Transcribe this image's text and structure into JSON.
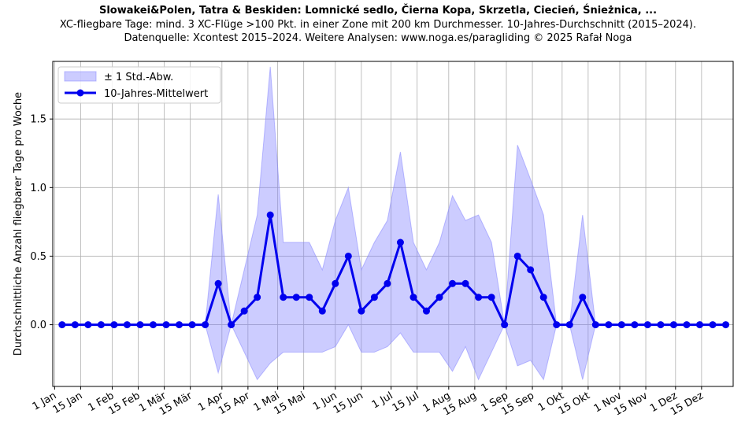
{
  "chart_data": {
    "type": "line",
    "title": "Slowakei&Polen, Tatra & Beskiden: Lomnické sedlo, Čierna Kopa, Skrzetla, Ciecień, Śnieżnica, ...",
    "subtitle_lines": [
      "XC-fliegbare Tage: mind. 3 XC-Flüge >100 Pkt. in einer Zone mit 200 km Durchmesser. 10-Jahres-Durchschnitt (2015–2024).",
      "Datenquelle: Xcontest 2015–2024. Weitere Analysen: www.noga.es/paragliding © 2025 Rafał Noga"
    ],
    "ylabel": "Durchschnittliche Anzahl fliegbarer Tage pro Woche",
    "xlabel": "",
    "x_unit": "day of year",
    "xlim": [
      0,
      366
    ],
    "ylim": [
      -0.45,
      1.92
    ],
    "y_ticks": [
      0.0,
      0.5,
      1.0,
      1.5
    ],
    "y_tick_labels": [
      "0.0",
      "0.5",
      "1.0",
      "1.5"
    ],
    "x_ticks": [
      1,
      15,
      32,
      46,
      60,
      74,
      91,
      105,
      121,
      135,
      152,
      166,
      182,
      196,
      213,
      227,
      244,
      258,
      274,
      288,
      305,
      319,
      335,
      349
    ],
    "x_tick_labels": [
      "1 Jan",
      "15 Jan",
      "1 Feb",
      "15 Feb",
      "1 Mär",
      "15 Mär",
      "1 Apr",
      "15 Apr",
      "1 Mai",
      "15 Mai",
      "1 Jun",
      "15 Jun",
      "1 Jul",
      "15 Jul",
      "1 Aug",
      "15 Aug",
      "1 Sep",
      "15 Sep",
      "1 Okt",
      "15 Okt",
      "1 Nov",
      "15 Nov",
      "1 Dez",
      "15 Dez"
    ],
    "grid": true,
    "legend_position": "top-left",
    "x": [
      5,
      12,
      19,
      26,
      33,
      40,
      47,
      54,
      61,
      68,
      75,
      82,
      89,
      96,
      103,
      110,
      117,
      124,
      131,
      138,
      145,
      152,
      159,
      166,
      173,
      180,
      187,
      194,
      201,
      208,
      215,
      222,
      229,
      236,
      243,
      250,
      257,
      264,
      271,
      278,
      285,
      292,
      299,
      306,
      313,
      320,
      327,
      334,
      341,
      348,
      355,
      362
    ],
    "series": [
      {
        "name": "10-Jahres-Mittelwert",
        "color": "#0000ee",
        "values": [
          0,
          0,
          0,
          0,
          0,
          0,
          0,
          0,
          0,
          0,
          0,
          0,
          0.3,
          0,
          0.1,
          0.2,
          0.8,
          0.2,
          0.2,
          0.2,
          0.1,
          0.3,
          0.5,
          0.1,
          0.2,
          0.3,
          0.6,
          0.2,
          0.1,
          0.2,
          0.3,
          0.3,
          0.2,
          0.2,
          0,
          0.5,
          0.4,
          0.2,
          0,
          0,
          0.2,
          0,
          0,
          0,
          0,
          0,
          0,
          0,
          0,
          0,
          0,
          0
        ]
      },
      {
        "name": "± 1 Std.-Abw.",
        "color": "#8080ff",
        "type": "band",
        "lower": [
          0,
          0,
          0,
          0,
          0,
          0,
          0,
          0,
          0,
          0,
          0,
          0,
          -0.35,
          0,
          -0.2,
          -0.4,
          -0.28,
          -0.2,
          -0.2,
          -0.2,
          -0.2,
          -0.16,
          0,
          -0.2,
          -0.2,
          -0.16,
          -0.06,
          -0.2,
          -0.2,
          -0.2,
          -0.34,
          -0.16,
          -0.4,
          -0.2,
          0,
          -0.3,
          -0.26,
          -0.4,
          0,
          0,
          -0.4,
          0,
          0,
          0,
          0,
          0,
          0,
          0,
          0,
          0,
          0,
          0
        ],
        "upper": [
          0,
          0,
          0,
          0,
          0,
          0,
          0,
          0,
          0,
          0,
          0,
          0,
          0.95,
          0,
          0.4,
          0.8,
          1.88,
          0.6,
          0.6,
          0.6,
          0.4,
          0.76,
          1.0,
          0.4,
          0.6,
          0.76,
          1.26,
          0.6,
          0.4,
          0.6,
          0.94,
          0.76,
          0.8,
          0.6,
          0,
          1.31,
          1.06,
          0.8,
          0,
          0,
          0.8,
          0,
          0,
          0,
          0,
          0,
          0,
          0,
          0,
          0,
          0,
          0
        ]
      }
    ]
  }
}
